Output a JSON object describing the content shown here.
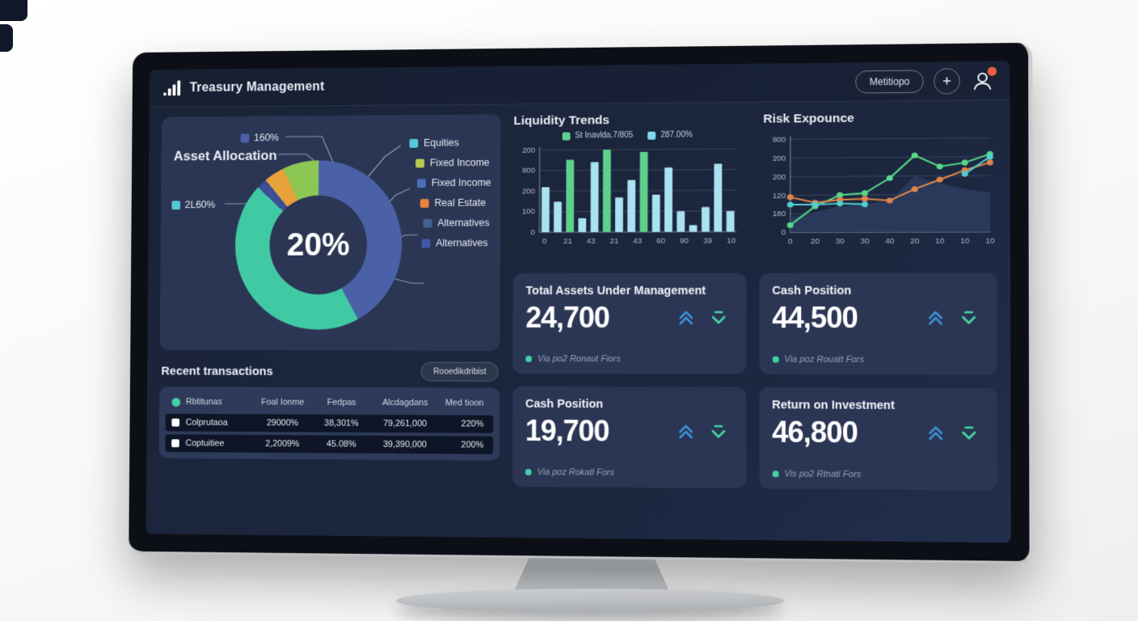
{
  "app": {
    "title": "Treasury Management",
    "menu_button_label": "Metitiopo",
    "add_button_label": "+"
  },
  "colors": {
    "screen_bg": "#1b2438",
    "panel_bg": "#2b3654",
    "accent_teal": "#41c9a4",
    "accent_blue": "#4a61a8",
    "accent_green": "#8cc653",
    "accent_orange": "#e8a23b",
    "bar_blue": "#a9e2f1",
    "bar_green": "#5ed08b",
    "line_green": "#57d989",
    "line_orange": "#e0854a",
    "line_teal": "#4fd0cf",
    "kpi_up_arrow": "#3e8fd8",
    "kpi_down_arrow": "#44d6a3",
    "notification": "#e8613c"
  },
  "asset_allocation": {
    "title": "Asset Allocation",
    "center_label": "20%",
    "callouts": [
      {
        "label": "160%",
        "color": "#4a61a8"
      },
      {
        "label": "2L60%",
        "color": "#56c8d8"
      }
    ],
    "legend": [
      {
        "label": "Equities",
        "color": "#56c8d8"
      },
      {
        "label": "Fixed Income",
        "color": "#b9c94f"
      },
      {
        "label": "Fixed Income",
        "color": "#4a6fb5"
      },
      {
        "label": "Real Estate",
        "color": "#e8833a"
      },
      {
        "label": "Alternatives",
        "color": "#46608f"
      },
      {
        "label": "Alternatives",
        "color": "#4456a8"
      }
    ],
    "chart_data": {
      "type": "pie",
      "center_label": "20%",
      "segments": [
        {
          "label": "Equities",
          "value": 42,
          "color": "#4a61a8"
        },
        {
          "label": "Fixed Income",
          "value": 45,
          "color": "#41c9a4"
        },
        {
          "label": "Alternatives",
          "value": 2,
          "color": "#3a4f94"
        },
        {
          "label": "Real Estate",
          "value": 4,
          "color": "#e8a23b"
        },
        {
          "label": "Real Estate",
          "value": 7,
          "color": "#8cc653"
        }
      ]
    }
  },
  "liquidity": {
    "title": "Liquidity Trends",
    "legend": [
      {
        "label": "St Inavlda.7/805",
        "color": "#5ed08b"
      },
      {
        "label": "287.00%",
        "color": "#7fd8e8"
      }
    ],
    "chart_data": {
      "type": "bar",
      "y_ticks": [
        "200",
        "800",
        "200",
        "100",
        "0"
      ],
      "x_ticks": [
        "0",
        "21",
        "43",
        "21",
        "43",
        "60",
        "90",
        "39",
        "10"
      ],
      "ylim": [
        0,
        100
      ],
      "bars": [
        {
          "value": 55,
          "color": "blue"
        },
        {
          "value": 37,
          "color": "blue"
        },
        {
          "value": 88,
          "color": "green"
        },
        {
          "value": 17,
          "color": "blue"
        },
        {
          "value": 85,
          "color": "blue"
        },
        {
          "value": 100,
          "color": "green"
        },
        {
          "value": 42,
          "color": "blue"
        },
        {
          "value": 63,
          "color": "blue"
        },
        {
          "value": 97,
          "color": "green"
        },
        {
          "value": 45,
          "color": "blue"
        },
        {
          "value": 78,
          "color": "blue"
        },
        {
          "value": 25,
          "color": "blue"
        },
        {
          "value": 8,
          "color": "blue"
        },
        {
          "value": 30,
          "color": "blue"
        },
        {
          "value": 82,
          "color": "blue"
        },
        {
          "value": 25,
          "color": "blue"
        }
      ]
    }
  },
  "risk": {
    "title": "Risk Expounce",
    "chart_data": {
      "type": "line",
      "y_ticks": [
        "800",
        "200",
        "200",
        "120",
        "180",
        "0"
      ],
      "x_ticks": [
        "0",
        "20",
        "30",
        "30",
        "40",
        "20",
        "10",
        "10",
        "10"
      ],
      "series": [
        {
          "name": "area-fill",
          "kind": "area",
          "color": "#2d3c5e",
          "values": [
            16,
            22,
            28,
            30,
            34,
            60,
            52,
            46,
            42
          ]
        },
        {
          "name": "green-line",
          "kind": "line",
          "color": "#57d989",
          "values": [
            8,
            28,
            40,
            42,
            58,
            82,
            70,
            74,
            83
          ]
        },
        {
          "name": "orange-line",
          "kind": "line",
          "color": "#e0854a",
          "values": [
            38,
            32,
            35,
            36,
            34,
            46,
            56,
            66,
            74
          ]
        },
        {
          "name": "teal-line",
          "kind": "line",
          "color": "#4fd0cf",
          "values": [
            30,
            30,
            31,
            30,
            null,
            null,
            null,
            62,
            80
          ]
        }
      ]
    }
  },
  "kpis": [
    {
      "title": "Total Assets Under Management",
      "value": "24,700",
      "note": "Via po2 Ronaut Fiors"
    },
    {
      "title": "Cash Position",
      "value": "44,500",
      "note": "Via poz Rouatt Fors"
    },
    {
      "title": "Cash Position",
      "value": "19,700",
      "note": "Via poz Rokatl Fors"
    },
    {
      "title": "Return on Investment",
      "value": "46,800",
      "note": "Vis po2 Rtnati Fors"
    }
  ],
  "transactions": {
    "title": "Recent transactions",
    "action_button": "Rooedikdribist",
    "columns": [
      "Rbtitunas",
      "Foal Ionme",
      "Fedpas",
      "Alcdagdans",
      "Med tioon"
    ],
    "rows": [
      [
        "Colprutaoa",
        "29000%",
        "38,301%",
        "79,261,000",
        "220%"
      ],
      [
        "Coptuitiee",
        "2,2009%",
        "45.08%",
        "39,390,000",
        "200%"
      ]
    ]
  }
}
